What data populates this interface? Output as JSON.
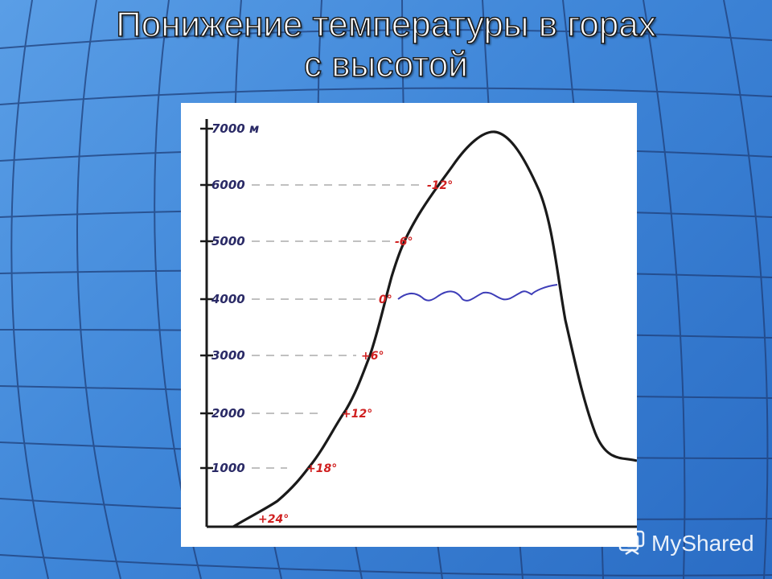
{
  "slide": {
    "title_line1": "Понижение температуры в горах",
    "title_line2": "с высотой"
  },
  "diagram": {
    "altitudes": [
      {
        "label": "1000",
        "temp": "+18°"
      },
      {
        "label": "2000",
        "temp": "+12°"
      },
      {
        "label": "3000",
        "temp": "+6°"
      },
      {
        "label": "4000",
        "temp": "0°"
      },
      {
        "label": "5000",
        "temp": "-6°"
      },
      {
        "label": "6000",
        "temp": "-12°"
      },
      {
        "label": "7000 м",
        "temp": ""
      }
    ],
    "base_temp": "+24°",
    "colors": {
      "axis": "#1a1a1a",
      "labels": "#2a2a66",
      "temps": "#d02020",
      "snowline": "#3d3db8",
      "grid": "#9a9a9a"
    }
  },
  "watermark": {
    "text": "MyShared",
    "icon": "myshared-logo-icon"
  }
}
